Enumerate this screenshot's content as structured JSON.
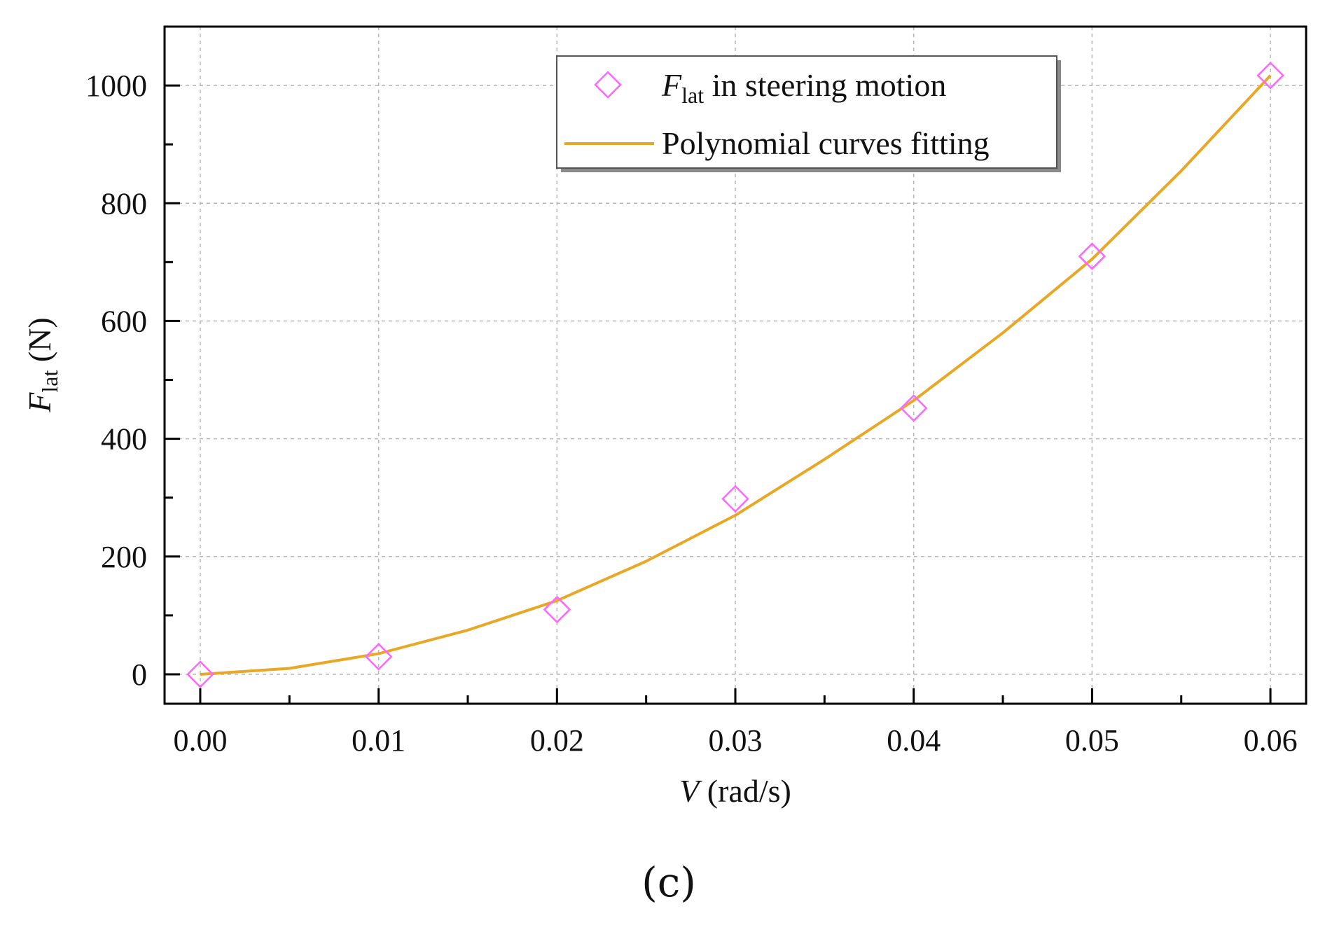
{
  "chart_data": {
    "type": "scatter",
    "xlabel": {
      "var": "V",
      "unit": " (rad/s)"
    },
    "ylabel": {
      "var": "F",
      "sub": "lat",
      "unit": " (N)"
    },
    "xlim": [
      -0.002,
      0.062
    ],
    "ylim": [
      -50,
      1100
    ],
    "x_ticks": [
      "0.00",
      "0.01",
      "0.02",
      "0.03",
      "0.04",
      "0.05",
      "0.06"
    ],
    "y_ticks": [
      "0",
      "200",
      "400",
      "600",
      "800",
      "1000"
    ],
    "grid": true,
    "legend_position": "top-right",
    "series": [
      {
        "name": {
          "var": "F",
          "sub": "lat",
          "rest": " in steering motion"
        },
        "kind": "scatter",
        "marker": "diamond",
        "color": "#ff66ff",
        "x": [
          0.0,
          0.01,
          0.02,
          0.03,
          0.04,
          0.05,
          0.06
        ],
        "y": [
          0,
          30,
          110,
          298,
          452,
          710,
          1017
        ]
      },
      {
        "name": "Polynomial curves fitting",
        "kind": "line",
        "color": "#e8a825",
        "x": [
          0.0,
          0.005,
          0.01,
          0.015,
          0.02,
          0.025,
          0.03,
          0.035,
          0.04,
          0.045,
          0.05,
          0.055,
          0.06
        ],
        "y": [
          0,
          10,
          35,
          75,
          125,
          192,
          270,
          365,
          465,
          580,
          705,
          855,
          1017
        ]
      }
    ]
  },
  "panel_label": "(c)"
}
